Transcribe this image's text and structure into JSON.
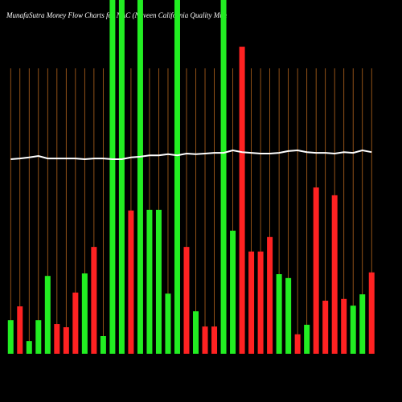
{
  "chart_data": {
    "type": "bar",
    "title": "MunafaSutra  Money Flow  Charts for NAC    (Nuveen California Quality Mun",
    "categories": [
      null,
      null,
      null,
      null,
      null,
      null,
      null,
      null,
      null,
      null,
      null,
      null,
      null,
      null,
      null,
      null,
      null,
      null,
      null,
      null,
      null,
      null,
      null,
      null,
      null,
      null,
      null,
      null,
      null,
      null,
      null,
      null,
      null,
      null,
      null,
      null,
      null,
      null,
      null,
      null
    ],
    "values": [
      9.5,
      13.4,
      3.6,
      9.5,
      22.0,
      8.4,
      7.5,
      17.3,
      22.7,
      30.2,
      5.0,
      100,
      100,
      40.5,
      100,
      40.7,
      40.7,
      17.0,
      100,
      30.2,
      12.0,
      7.7,
      7.7,
      100,
      34.8,
      86.8,
      28.9,
      28.9,
      33.0,
      22.5,
      21.4,
      5.5,
      8.2,
      47.0,
      15.0,
      44.8,
      15.5,
      13.6,
      16.8,
      23.0
    ],
    "colors": [
      "#22ee22",
      "#ff2222",
      "#22ee22",
      "#22ee22",
      "#22ee22",
      "#ff2222",
      "#ff2222",
      "#ff2222",
      "#22ee22",
      "#ff2222",
      "#22ee22",
      "#22ee22",
      "#22ee22",
      "#ff2222",
      "#22ee22",
      "#22ee22",
      "#22ee22",
      "#22ee22",
      "#22ee22",
      "#ff2222",
      "#22ee22",
      "#ff2222",
      "#ff2222",
      "#22ee22",
      "#22ee22",
      "#ff2222",
      "#ff2222",
      "#ff2222",
      "#ff2222",
      "#22ee22",
      "#22ee22",
      "#ff2222",
      "#22ee22",
      "#ff2222",
      "#ff2222",
      "#ff2222",
      "#ff2222",
      "#22ee22",
      "#22ee22",
      "#ff2222"
    ],
    "line": {
      "color": "#ffffff",
      "values": [
        55.0,
        55.2,
        55.5,
        55.9,
        55.2,
        55.2,
        55.2,
        55.2,
        55.0,
        55.2,
        55.2,
        55.0,
        55.0,
        55.5,
        55.7,
        56.1,
        56.1,
        56.4,
        56.1,
        56.6,
        56.4,
        56.6,
        56.8,
        56.8,
        57.5,
        57.0,
        56.8,
        56.6,
        56.6,
        56.8,
        57.3,
        57.5,
        57.0,
        56.8,
        56.8,
        56.6,
        57.0,
        56.8,
        57.5,
        57.0
      ]
    },
    "ylim": [
      0,
      100
    ],
    "grid_color": "#b5651d"
  }
}
